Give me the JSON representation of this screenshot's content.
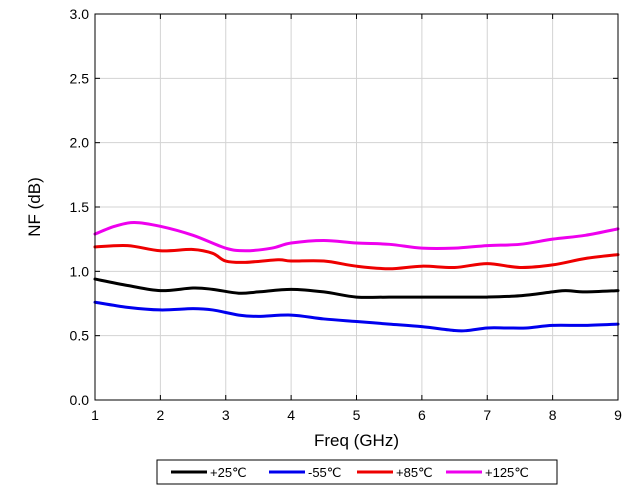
{
  "chart_data": {
    "type": "line",
    "title": "",
    "xlabel": "Freq (GHz)",
    "ylabel": "NF (dB)",
    "xlim": [
      1,
      9
    ],
    "ylim": [
      0.0,
      3.0
    ],
    "x_ticks": [
      1,
      2,
      3,
      4,
      5,
      6,
      7,
      8,
      9
    ],
    "x_tick_labels": [
      "1",
      "2",
      "3",
      "4",
      "5",
      "6",
      "7",
      "8",
      "9"
    ],
    "y_ticks": [
      0.0,
      0.5,
      1.0,
      1.5,
      2.0,
      2.5,
      3.0
    ],
    "y_tick_labels": [
      "0.0",
      "0.5",
      "1.0",
      "1.5",
      "2.0",
      "2.5",
      "3.0"
    ],
    "grid": true,
    "legend_position": "bottom",
    "series": [
      {
        "name": "+25℃",
        "color": "#000000",
        "x": [
          1.0,
          1.5,
          2.0,
          2.5,
          2.8,
          3.2,
          3.5,
          4.0,
          4.5,
          5.0,
          5.5,
          6.0,
          6.5,
          7.0,
          7.5,
          8.0,
          8.2,
          8.5,
          9.0
        ],
        "y": [
          0.94,
          0.89,
          0.85,
          0.87,
          0.86,
          0.83,
          0.84,
          0.86,
          0.84,
          0.8,
          0.8,
          0.8,
          0.8,
          0.8,
          0.81,
          0.84,
          0.85,
          0.84,
          0.85
        ]
      },
      {
        "name": "-55℃",
        "color": "#0000ee",
        "x": [
          1.0,
          1.5,
          2.0,
          2.5,
          2.8,
          3.2,
          3.5,
          4.0,
          4.5,
          5.0,
          5.5,
          6.0,
          6.5,
          6.7,
          7.0,
          7.3,
          7.6,
          8.0,
          8.5,
          9.0
        ],
        "y": [
          0.76,
          0.72,
          0.7,
          0.71,
          0.7,
          0.66,
          0.65,
          0.66,
          0.63,
          0.61,
          0.59,
          0.57,
          0.54,
          0.54,
          0.56,
          0.56,
          0.56,
          0.58,
          0.58,
          0.59
        ]
      },
      {
        "name": "+85℃",
        "color": "#ee0000",
        "x": [
          1.0,
          1.5,
          2.0,
          2.5,
          2.8,
          3.0,
          3.3,
          3.8,
          4.0,
          4.5,
          5.0,
          5.5,
          6.0,
          6.5,
          7.0,
          7.5,
          8.0,
          8.5,
          9.0
        ],
        "y": [
          1.19,
          1.2,
          1.16,
          1.17,
          1.14,
          1.08,
          1.07,
          1.09,
          1.08,
          1.08,
          1.04,
          1.02,
          1.04,
          1.03,
          1.06,
          1.03,
          1.05,
          1.1,
          1.13
        ]
      },
      {
        "name": "+125℃",
        "color": "#ee00ee",
        "x": [
          1.0,
          1.3,
          1.6,
          2.0,
          2.5,
          3.0,
          3.3,
          3.7,
          4.0,
          4.5,
          5.0,
          5.5,
          6.0,
          6.5,
          7.0,
          7.5,
          8.0,
          8.5,
          9.0
        ],
        "y": [
          1.29,
          1.35,
          1.38,
          1.35,
          1.28,
          1.18,
          1.16,
          1.18,
          1.22,
          1.24,
          1.22,
          1.21,
          1.18,
          1.18,
          1.2,
          1.21,
          1.25,
          1.28,
          1.33
        ]
      }
    ]
  }
}
